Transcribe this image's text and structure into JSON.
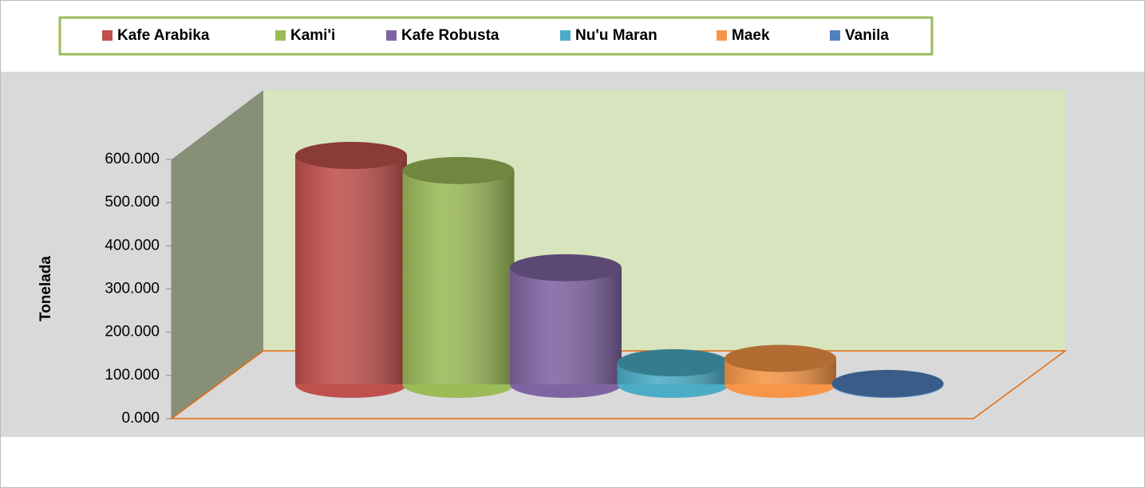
{
  "chart_data": {
    "type": "cylinder",
    "y_label": "Tonelada",
    "series": [
      {
        "name": "Kafe Arabika",
        "color": "#c0504d",
        "values": [
          530
        ]
      },
      {
        "name": "Kami'i",
        "color": "#9bbb59",
        "values": [
          495
        ]
      },
      {
        "name": "Kafe Robusta",
        "color": "#8064a2",
        "values": [
          270
        ]
      },
      {
        "name": "Nu'u Maran",
        "color": "#4bacc6",
        "values": [
          50
        ]
      },
      {
        "name": "Maek",
        "color": "#f79646",
        "values": [
          60
        ]
      },
      {
        "name": "Vanila",
        "color": "#4f81bd",
        "values": [
          2
        ]
      }
    ],
    "ylim": [
      0,
      600
    ],
    "yticks": [
      {
        "value": 0,
        "label": "0.000"
      },
      {
        "value": 100,
        "label": "100.000"
      },
      {
        "value": 200,
        "label": "200.000"
      },
      {
        "value": 300,
        "label": "300.000"
      },
      {
        "value": 400,
        "label": "400.000"
      },
      {
        "value": 500,
        "label": "500.000"
      },
      {
        "value": 600,
        "label": "600.000"
      }
    ],
    "legend": "top"
  }
}
